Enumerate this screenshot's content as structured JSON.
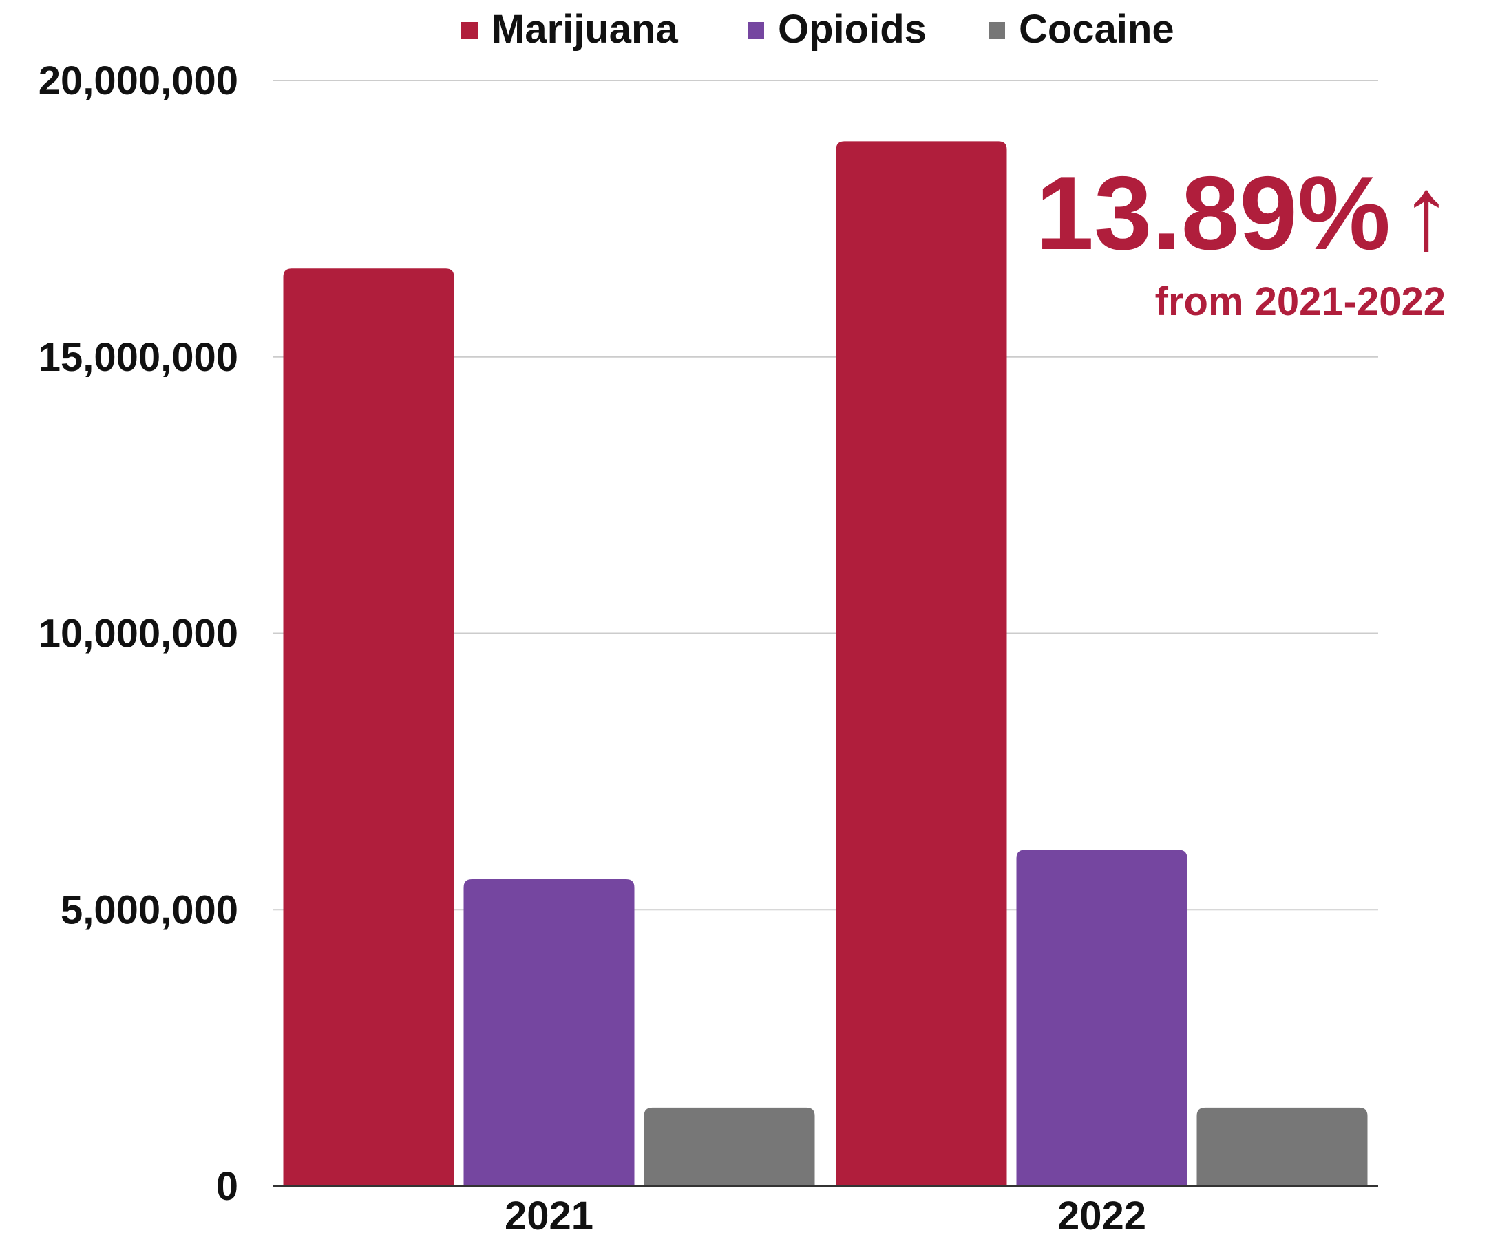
{
  "chart_data": {
    "type": "bar",
    "categories": [
      "2021",
      "2022"
    ],
    "series": [
      {
        "name": "Marijuana",
        "color": "#b01e3c",
        "values": [
          16600000,
          18900000
        ]
      },
      {
        "name": "Opioids",
        "color": "#7546a0",
        "values": [
          5550000,
          6080000
        ]
      },
      {
        "name": "Cocaine",
        "color": "#777777",
        "values": [
          1420000,
          1420000
        ]
      }
    ],
    "ylim": [
      0,
      20000000
    ],
    "yticks": [
      0,
      5000000,
      10000000,
      15000000,
      20000000
    ],
    "ytick_labels": [
      "0",
      "5,000,000",
      "10,000,000",
      "15,000,000",
      "20,000,000"
    ],
    "grid": true,
    "legend_position": "top",
    "annotation": {
      "main": "13.89%",
      "arrow": "↑",
      "sub": "from 2021-2022",
      "color": "#b01e3c"
    }
  }
}
